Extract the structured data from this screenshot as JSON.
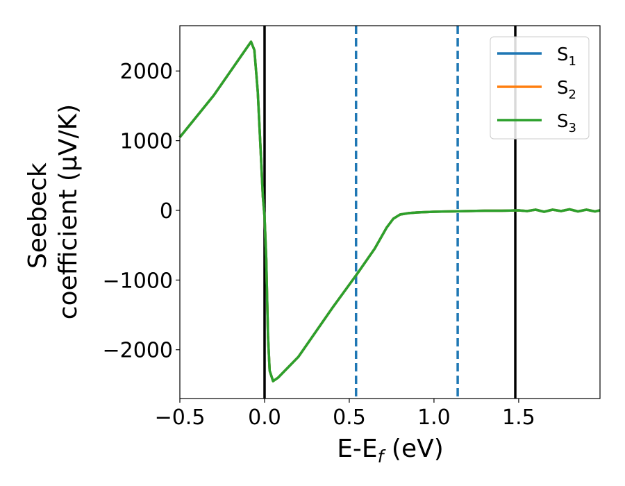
{
  "chart_data": {
    "type": "line",
    "xlabel": {
      "main": "E-E",
      "sub": "f",
      "suffix": " (eV)"
    },
    "ylabel": {
      "line1": "Seebeck",
      "line2": "coefficient  (μV/K)"
    },
    "xlim": [
      -0.5,
      1.98
    ],
    "ylim": [
      -2700,
      2650
    ],
    "xticks": [
      -0.5,
      0.0,
      0.5,
      1.0,
      1.5
    ],
    "xtick_labels": [
      "−0.5",
      "0.0",
      "0.5",
      "1.0",
      "1.5"
    ],
    "yticks": [
      2000,
      1000,
      0,
      -1000,
      -2000
    ],
    "ytick_labels": [
      "2000",
      "1000",
      "0",
      "−1000",
      "−2000"
    ],
    "grid": false,
    "legend_position": "top-right",
    "series": [
      {
        "name": "S",
        "sub": "1",
        "color": "#1f77b4",
        "x": [
          -0.5,
          -0.3,
          -0.1,
          -0.08,
          -0.06,
          -0.04,
          -0.02,
          -0.01,
          0.0,
          0.01,
          0.02,
          0.03,
          0.05,
          0.08,
          0.2,
          0.4,
          0.55,
          0.65,
          0.72,
          0.76,
          0.8,
          0.85,
          0.9,
          1.0,
          1.1,
          1.2,
          1.3,
          1.4,
          1.5,
          1.55,
          1.6,
          1.65,
          1.7,
          1.75,
          1.8,
          1.85,
          1.9,
          1.95,
          1.98
        ],
        "y": [
          1050,
          1650,
          2350,
          2420,
          2300,
          1700,
          700,
          200,
          -100,
          -700,
          -1800,
          -2300,
          -2450,
          -2400,
          -2100,
          -1400,
          -900,
          -550,
          -250,
          -120,
          -60,
          -40,
          -30,
          -20,
          -15,
          -10,
          -5,
          -5,
          0,
          -10,
          10,
          -20,
          10,
          -10,
          15,
          -15,
          10,
          -15,
          0
        ]
      },
      {
        "name": "S",
        "sub": "2",
        "color": "#ff7f0e",
        "x": [
          -0.5,
          -0.3,
          -0.1,
          -0.08,
          -0.06,
          -0.04,
          -0.02,
          -0.01,
          0.0,
          0.01,
          0.02,
          0.03,
          0.05,
          0.08,
          0.2,
          0.4,
          0.55,
          0.65,
          0.72,
          0.76,
          0.8,
          0.85,
          0.9,
          1.0,
          1.1,
          1.2,
          1.3,
          1.4,
          1.5,
          1.55,
          1.6,
          1.65,
          1.7,
          1.75,
          1.8,
          1.85,
          1.9,
          1.95,
          1.98
        ],
        "y": [
          1050,
          1650,
          2350,
          2420,
          2300,
          1700,
          700,
          200,
          -100,
          -700,
          -1800,
          -2300,
          -2450,
          -2400,
          -2100,
          -1400,
          -900,
          -550,
          -250,
          -120,
          -60,
          -40,
          -30,
          -20,
          -15,
          -10,
          -5,
          -5,
          0,
          -10,
          10,
          -20,
          10,
          -10,
          15,
          -15,
          10,
          -15,
          0
        ]
      },
      {
        "name": "S",
        "sub": "3",
        "color": "#2ca02c",
        "x": [
          -0.5,
          -0.3,
          -0.1,
          -0.08,
          -0.06,
          -0.04,
          -0.02,
          -0.01,
          0.0,
          0.01,
          0.02,
          0.03,
          0.05,
          0.08,
          0.2,
          0.4,
          0.55,
          0.65,
          0.72,
          0.76,
          0.8,
          0.85,
          0.9,
          1.0,
          1.1,
          1.2,
          1.3,
          1.4,
          1.5,
          1.55,
          1.6,
          1.65,
          1.7,
          1.75,
          1.8,
          1.85,
          1.9,
          1.95,
          1.98
        ],
        "y": [
          1050,
          1650,
          2350,
          2420,
          2300,
          1700,
          700,
          200,
          -100,
          -700,
          -1800,
          -2300,
          -2450,
          -2400,
          -2100,
          -1400,
          -900,
          -550,
          -250,
          -120,
          -60,
          -40,
          -30,
          -20,
          -15,
          -10,
          -5,
          -5,
          0,
          -10,
          10,
          -20,
          10,
          -10,
          15,
          -15,
          10,
          -15,
          0
        ]
      }
    ],
    "vlines": [
      {
        "x": 0.0,
        "style": "solid",
        "color": "#000000"
      },
      {
        "x": 0.54,
        "style": "dashed",
        "color": "#1f77b4"
      },
      {
        "x": 1.14,
        "style": "dashed",
        "color": "#1f77b4"
      },
      {
        "x": 1.48,
        "style": "solid",
        "color": "#000000"
      }
    ]
  }
}
